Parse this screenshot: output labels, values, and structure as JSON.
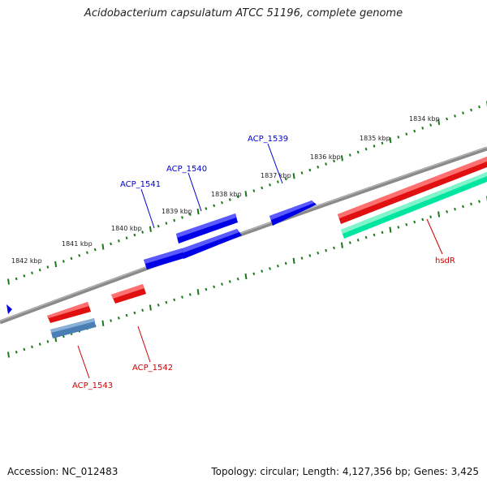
{
  "title": "Acidobacterium capsulatum ATCC 51196, complete genome",
  "accession": "Accession: NC_012483",
  "summary": "Topology: circular; Length: 4,127,356 bp; Genes: 3,425",
  "kbp_ticks": [
    "1834 kbp",
    "1835 kbp",
    "1836 kbp",
    "1837 kbp",
    "1838 kbp",
    "1839 kbp",
    "1840 kbp",
    "1841 kbp",
    "1842 kbp"
  ],
  "colors": {
    "forward_gene": "#0000e6",
    "reverse_gene": "#e60000",
    "rna_gene": "#00d890",
    "other_gene": "#4682b4",
    "backbone": "#808080",
    "tick": "#1a7a1a"
  },
  "gene_labels": [
    {
      "id": "ACP_1539",
      "text": "ACP_1539",
      "strand": "forward"
    },
    {
      "id": "ACP_1540",
      "text": "ACP_1540",
      "strand": "forward"
    },
    {
      "id": "ACP_1541",
      "text": "ACP_1541",
      "strand": "forward"
    },
    {
      "id": "ACP_1542",
      "text": "ACP_1542",
      "strand": "reverse"
    },
    {
      "id": "ACP_1543",
      "text": "ACP_1543",
      "strand": "reverse"
    },
    {
      "id": "hsdR",
      "text": "hsdR",
      "strand": "reverse"
    }
  ]
}
